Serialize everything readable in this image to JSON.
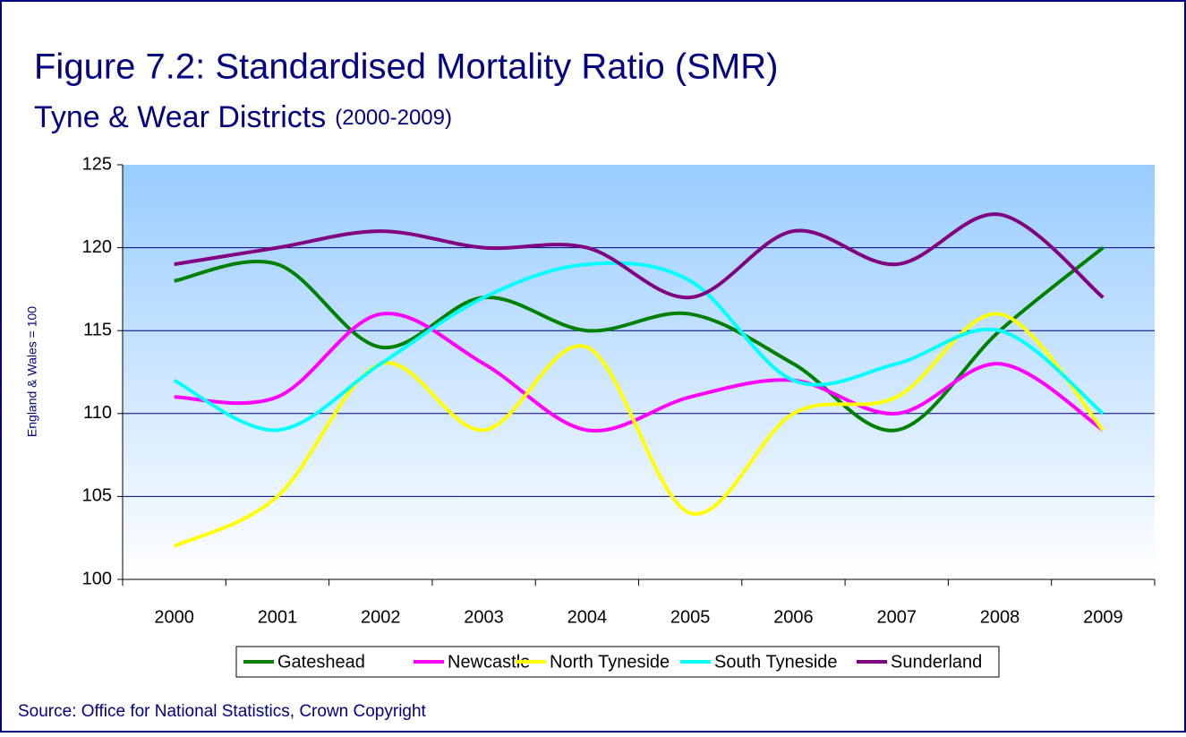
{
  "chart_data": {
    "type": "line",
    "title": "Figure 7.2: Standardised Mortality Ratio (SMR)",
    "subtitle": "Tyne & Wear Districts",
    "subtitle_note": "(2000-2009)",
    "y_label": "England & Wales = 100",
    "source": "Source: Office for National Statistics, Crown Copyright",
    "categories": [
      "2000",
      "2001",
      "2002",
      "2003",
      "2004",
      "2005",
      "2006",
      "2007",
      "2008",
      "2009"
    ],
    "series": [
      {
        "name": "Gateshead",
        "color": "#008000",
        "values": [
          118,
          119,
          114,
          117,
          115,
          116,
          113,
          109,
          115,
          120
        ]
      },
      {
        "name": "Newcastle",
        "color": "#ff00ff",
        "values": [
          111,
          111,
          116,
          113,
          109,
          111,
          112,
          110,
          113,
          109
        ]
      },
      {
        "name": "North Tyneside",
        "color": "#ffff00",
        "values": [
          102,
          105,
          113,
          109,
          114,
          104,
          110,
          111,
          116,
          109
        ]
      },
      {
        "name": "South Tyneside",
        "color": "#00ffff",
        "values": [
          112,
          109,
          113,
          117,
          119,
          118,
          112,
          113,
          115,
          110
        ]
      },
      {
        "name": "Sunderland",
        "color": "#800080",
        "values": [
          119,
          120,
          121,
          120,
          120,
          117,
          121,
          119,
          122,
          117
        ]
      }
    ],
    "ylim": [
      100,
      125
    ],
    "yticks": [
      100,
      105,
      110,
      115,
      120,
      125
    ],
    "grid": true,
    "smooth": true,
    "legend": "bottom"
  }
}
